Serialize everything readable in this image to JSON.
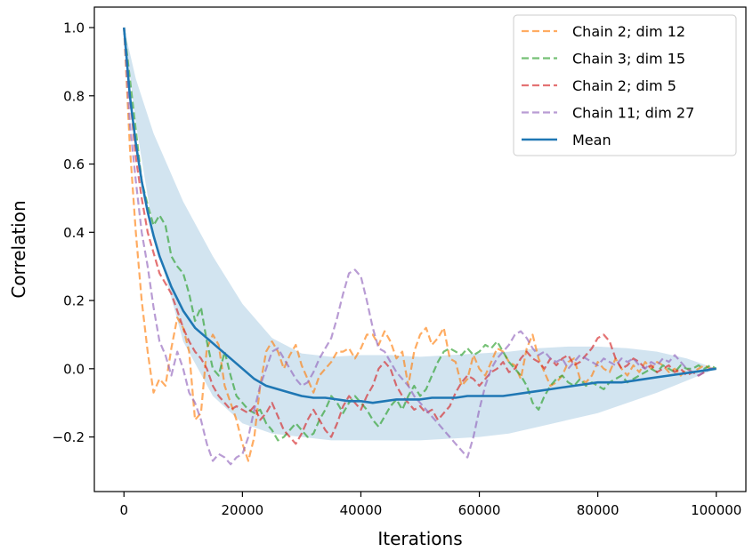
{
  "chart_data": {
    "type": "line",
    "title": "",
    "xlabel": "Iterations",
    "ylabel": "Correlation",
    "xlim": [
      -5000,
      105000
    ],
    "ylim": [
      -0.36,
      1.06
    ],
    "xticks": [
      0,
      20000,
      40000,
      60000,
      80000,
      100000
    ],
    "xtick_labels": [
      "0",
      "20000",
      "40000",
      "60000",
      "80000",
      "100000"
    ],
    "yticks": [
      -0.2,
      0.0,
      0.2,
      0.4,
      0.6,
      0.8,
      1.0
    ],
    "ytick_labels": [
      "−0.2",
      "0.0",
      "0.2",
      "0.4",
      "0.6",
      "0.8",
      "1.0"
    ],
    "grid": false,
    "legend_position": "top-right",
    "band": {
      "color": "#1f77b4",
      "x": [
        0,
        2000,
        5000,
        10000,
        15000,
        20000,
        25000,
        30000,
        35000,
        40000,
        45000,
        50000,
        55000,
        60000,
        65000,
        70000,
        75000,
        80000,
        85000,
        90000,
        95000,
        100000
      ],
      "upper": [
        1.0,
        0.85,
        0.69,
        0.49,
        0.33,
        0.19,
        0.09,
        0.045,
        0.035,
        0.04,
        0.04,
        0.035,
        0.04,
        0.045,
        0.05,
        0.06,
        0.065,
        0.065,
        0.06,
        0.05,
        0.03,
        0.0
      ],
      "lower": [
        1.0,
        0.72,
        0.4,
        0.08,
        -0.08,
        -0.16,
        -0.19,
        -0.2,
        -0.21,
        -0.21,
        -0.21,
        -0.21,
        -0.205,
        -0.2,
        -0.19,
        -0.17,
        -0.15,
        -0.13,
        -0.1,
        -0.07,
        -0.035,
        0.0
      ]
    },
    "series": [
      {
        "name": "Chain 2; dim 12",
        "color": "#ff7f0e",
        "style": "dashed",
        "x": [
          0,
          1000,
          2000,
          3000,
          4000,
          5000,
          6000,
          7000,
          8000,
          9000,
          10000,
          11000,
          12000,
          13000,
          14000,
          15000,
          16000,
          17000,
          18000,
          19000,
          20000,
          21000,
          22000,
          23000,
          24000,
          25000,
          26000,
          27000,
          28000,
          29000,
          30000,
          31000,
          32000,
          33000,
          34000,
          35000,
          36000,
          37000,
          38000,
          39000,
          40000,
          41000,
          42000,
          43000,
          44000,
          45000,
          46000,
          47000,
          48000,
          49000,
          50000,
          51000,
          52000,
          53000,
          54000,
          55000,
          56000,
          57000,
          58000,
          59000,
          60000,
          61000,
          62000,
          63000,
          64000,
          65000,
          66000,
          67000,
          68000,
          69000,
          70000,
          71000,
          72000,
          73000,
          74000,
          75000,
          76000,
          77000,
          78000,
          79000,
          80000,
          81000,
          82000,
          83000,
          84000,
          85000,
          86000,
          87000,
          88000,
          89000,
          90000,
          91000,
          92000,
          93000,
          94000,
          95000,
          96000,
          97000,
          98000,
          99000,
          100000
        ],
        "y": [
          1.0,
          0.65,
          0.4,
          0.2,
          0.05,
          -0.07,
          -0.03,
          -0.05,
          0.06,
          0.15,
          0.12,
          0.05,
          -0.15,
          -0.13,
          0.06,
          0.1,
          0.07,
          -0.05,
          -0.1,
          -0.15,
          -0.22,
          -0.27,
          -0.2,
          -0.05,
          0.05,
          0.08,
          0.05,
          0.0,
          0.04,
          0.07,
          0.01,
          -0.03,
          -0.07,
          -0.02,
          0.0,
          0.02,
          0.05,
          0.05,
          0.06,
          0.03,
          0.06,
          0.1,
          0.1,
          0.07,
          0.11,
          0.08,
          0.03,
          0.05,
          -0.05,
          0.05,
          0.1,
          0.12,
          0.07,
          0.09,
          0.12,
          0.03,
          0.02,
          -0.05,
          -0.03,
          0.04,
          0.0,
          -0.02,
          0.02,
          0.06,
          0.05,
          0.02,
          0.01,
          -0.03,
          0.06,
          0.1,
          0.03,
          -0.01,
          -0.05,
          -0.04,
          -0.02,
          0.02,
          0.03,
          -0.03,
          -0.04,
          -0.02,
          0.02,
          0.0,
          -0.01,
          0.03,
          0.0,
          -0.02,
          0.01,
          -0.01,
          0.02,
          0.0,
          0.02,
          0.01,
          -0.01,
          0.0,
          -0.02,
          0.0,
          -0.01,
          0.0,
          0.01,
          0.0,
          0.0
        ]
      },
      {
        "name": "Chain 3; dim 15",
        "color": "#2ca02c",
        "style": "dashed",
        "x": [
          0,
          1000,
          2000,
          3000,
          4000,
          5000,
          6000,
          7000,
          8000,
          9000,
          10000,
          11000,
          12000,
          13000,
          14000,
          15000,
          16000,
          17000,
          18000,
          19000,
          20000,
          21000,
          22000,
          23000,
          24000,
          25000,
          26000,
          27000,
          28000,
          29000,
          30000,
          31000,
          32000,
          33000,
          34000,
          35000,
          36000,
          37000,
          38000,
          39000,
          40000,
          41000,
          42000,
          43000,
          44000,
          45000,
          46000,
          47000,
          48000,
          49000,
          50000,
          51000,
          52000,
          53000,
          54000,
          55000,
          56000,
          57000,
          58000,
          59000,
          60000,
          61000,
          62000,
          63000,
          64000,
          65000,
          66000,
          67000,
          68000,
          69000,
          70000,
          71000,
          72000,
          73000,
          74000,
          75000,
          76000,
          77000,
          78000,
          79000,
          80000,
          81000,
          82000,
          83000,
          84000,
          85000,
          86000,
          87000,
          88000,
          89000,
          90000,
          91000,
          92000,
          93000,
          94000,
          95000,
          96000,
          97000,
          98000,
          99000,
          100000
        ],
        "y": [
          1.0,
          0.85,
          0.7,
          0.55,
          0.48,
          0.42,
          0.45,
          0.42,
          0.33,
          0.3,
          0.28,
          0.22,
          0.14,
          0.18,
          0.08,
          0.0,
          -0.02,
          0.05,
          -0.02,
          -0.08,
          -0.1,
          -0.12,
          -0.13,
          -0.12,
          -0.16,
          -0.18,
          -0.21,
          -0.2,
          -0.18,
          -0.16,
          -0.18,
          -0.2,
          -0.19,
          -0.15,
          -0.12,
          -0.08,
          -0.1,
          -0.13,
          -0.1,
          -0.08,
          -0.1,
          -0.12,
          -0.15,
          -0.17,
          -0.14,
          -0.11,
          -0.09,
          -0.12,
          -0.08,
          -0.05,
          -0.08,
          -0.06,
          -0.02,
          0.02,
          0.05,
          0.06,
          0.05,
          0.04,
          0.06,
          0.04,
          0.05,
          0.07,
          0.06,
          0.08,
          0.05,
          0.02,
          0.0,
          -0.02,
          -0.05,
          -0.1,
          -0.12,
          -0.08,
          -0.05,
          -0.03,
          -0.02,
          -0.04,
          -0.05,
          -0.03,
          -0.05,
          -0.04,
          -0.05,
          -0.06,
          -0.04,
          -0.03,
          -0.02,
          -0.04,
          -0.03,
          -0.02,
          -0.01,
          0.0,
          -0.01,
          0.01,
          0.0,
          -0.01,
          0.01,
          0.0,
          0.0,
          0.01,
          0.0,
          0.01,
          0.0
        ]
      },
      {
        "name": "Chain 2; dim 5",
        "color": "#d62728",
        "style": "dashed",
        "x": [
          0,
          1000,
          2000,
          3000,
          4000,
          5000,
          6000,
          7000,
          8000,
          9000,
          10000,
          11000,
          12000,
          13000,
          14000,
          15000,
          16000,
          17000,
          18000,
          19000,
          20000,
          21000,
          22000,
          23000,
          24000,
          25000,
          26000,
          27000,
          28000,
          29000,
          30000,
          31000,
          32000,
          33000,
          34000,
          35000,
          36000,
          37000,
          38000,
          39000,
          40000,
          41000,
          42000,
          43000,
          44000,
          45000,
          46000,
          47000,
          48000,
          49000,
          50000,
          51000,
          52000,
          53000,
          54000,
          55000,
          56000,
          57000,
          58000,
          59000,
          60000,
          61000,
          62000,
          63000,
          64000,
          65000,
          66000,
          67000,
          68000,
          69000,
          70000,
          71000,
          72000,
          73000,
          74000,
          75000,
          76000,
          77000,
          78000,
          79000,
          80000,
          81000,
          82000,
          83000,
          84000,
          85000,
          86000,
          87000,
          88000,
          89000,
          90000,
          91000,
          92000,
          93000,
          94000,
          95000,
          96000,
          97000,
          98000,
          99000,
          100000
        ],
        "y": [
          1.0,
          0.8,
          0.62,
          0.5,
          0.4,
          0.34,
          0.28,
          0.25,
          0.22,
          0.17,
          0.12,
          0.08,
          0.05,
          0.03,
          0.0,
          -0.05,
          -0.08,
          -0.1,
          -0.12,
          -0.11,
          -0.12,
          -0.13,
          -0.11,
          -0.15,
          -0.13,
          -0.1,
          -0.14,
          -0.18,
          -0.2,
          -0.22,
          -0.19,
          -0.15,
          -0.12,
          -0.15,
          -0.18,
          -0.2,
          -0.16,
          -0.11,
          -0.08,
          -0.1,
          -0.12,
          -0.08,
          -0.05,
          0.0,
          0.02,
          0.0,
          -0.05,
          -0.08,
          -0.1,
          -0.12,
          -0.11,
          -0.13,
          -0.12,
          -0.15,
          -0.13,
          -0.11,
          -0.07,
          -0.04,
          -0.02,
          -0.03,
          -0.05,
          -0.03,
          -0.01,
          0.0,
          0.02,
          -0.01,
          0.0,
          0.03,
          0.05,
          0.03,
          0.02,
          0.0,
          0.03,
          0.01,
          0.03,
          0.04,
          0.01,
          0.02,
          0.04,
          0.06,
          0.09,
          0.1,
          0.08,
          0.03,
          0.0,
          0.01,
          0.03,
          0.02,
          0.0,
          0.01,
          -0.01,
          0.0,
          0.01,
          -0.01,
          0.0,
          -0.02,
          -0.01,
          -0.02,
          -0.01,
          0.0,
          0.0
        ]
      },
      {
        "name": "Chain 11; dim 27",
        "color": "#9467bd",
        "style": "dashed",
        "x": [
          0,
          1000,
          2000,
          3000,
          4000,
          5000,
          6000,
          7000,
          8000,
          9000,
          10000,
          11000,
          12000,
          13000,
          14000,
          15000,
          16000,
          17000,
          18000,
          19000,
          20000,
          21000,
          22000,
          23000,
          24000,
          25000,
          26000,
          27000,
          28000,
          29000,
          30000,
          31000,
          32000,
          33000,
          34000,
          35000,
          36000,
          37000,
          38000,
          39000,
          40000,
          41000,
          42000,
          43000,
          44000,
          45000,
          46000,
          47000,
          48000,
          49000,
          50000,
          51000,
          52000,
          53000,
          54000,
          55000,
          56000,
          57000,
          58000,
          59000,
          60000,
          61000,
          62000,
          63000,
          64000,
          65000,
          66000,
          67000,
          68000,
          69000,
          70000,
          71000,
          72000,
          73000,
          74000,
          75000,
          76000,
          77000,
          78000,
          79000,
          80000,
          81000,
          82000,
          83000,
          84000,
          85000,
          86000,
          87000,
          88000,
          89000,
          90000,
          91000,
          92000,
          93000,
          94000,
          95000,
          96000,
          97000,
          98000,
          99000,
          100000
        ],
        "y": [
          1.0,
          0.72,
          0.55,
          0.4,
          0.3,
          0.18,
          0.08,
          0.04,
          -0.02,
          0.05,
          0.0,
          -0.07,
          -0.1,
          -0.15,
          -0.22,
          -0.27,
          -0.25,
          -0.26,
          -0.28,
          -0.26,
          -0.25,
          -0.2,
          -0.12,
          -0.05,
          0.0,
          0.05,
          0.06,
          0.03,
          0.0,
          -0.03,
          -0.05,
          -0.04,
          -0.01,
          0.03,
          0.06,
          0.09,
          0.15,
          0.22,
          0.28,
          0.29,
          0.27,
          0.2,
          0.12,
          0.06,
          0.05,
          0.02,
          -0.01,
          -0.03,
          -0.05,
          -0.08,
          -0.1,
          -0.12,
          -0.14,
          -0.16,
          -0.18,
          -0.2,
          -0.22,
          -0.24,
          -0.26,
          -0.2,
          -0.12,
          -0.05,
          0.0,
          0.03,
          0.05,
          0.07,
          0.1,
          0.11,
          0.09,
          0.06,
          0.04,
          0.05,
          0.03,
          0.02,
          0.03,
          0.0,
          0.02,
          0.04,
          0.03,
          0.02,
          0.01,
          0.03,
          0.02,
          0.01,
          0.03,
          0.02,
          0.03,
          0.01,
          0.0,
          0.02,
          0.01,
          0.03,
          0.02,
          0.04,
          0.02,
          0.0,
          -0.01,
          -0.02,
          -0.01,
          0.0,
          0.0
        ]
      },
      {
        "name": "Mean",
        "color": "#1f77b4",
        "style": "solid",
        "x": [
          0,
          1000,
          2000,
          3000,
          4000,
          5000,
          6000,
          8000,
          10000,
          12000,
          14000,
          16000,
          18000,
          20000,
          22000,
          24000,
          26000,
          28000,
          30000,
          32000,
          34000,
          36000,
          38000,
          40000,
          42000,
          44000,
          46000,
          48000,
          50000,
          52000,
          54000,
          56000,
          58000,
          60000,
          62000,
          64000,
          66000,
          68000,
          70000,
          72000,
          74000,
          76000,
          78000,
          80000,
          82000,
          84000,
          86000,
          88000,
          90000,
          92000,
          94000,
          96000,
          98000,
          100000
        ],
        "y": [
          1.0,
          0.8,
          0.66,
          0.55,
          0.46,
          0.39,
          0.33,
          0.24,
          0.17,
          0.12,
          0.09,
          0.06,
          0.03,
          0.0,
          -0.03,
          -0.05,
          -0.06,
          -0.07,
          -0.08,
          -0.085,
          -0.085,
          -0.09,
          -0.095,
          -0.095,
          -0.1,
          -0.095,
          -0.09,
          -0.09,
          -0.09,
          -0.085,
          -0.085,
          -0.085,
          -0.08,
          -0.08,
          -0.08,
          -0.08,
          -0.075,
          -0.07,
          -0.065,
          -0.06,
          -0.055,
          -0.05,
          -0.045,
          -0.04,
          -0.04,
          -0.04,
          -0.035,
          -0.03,
          -0.025,
          -0.02,
          -0.015,
          -0.01,
          -0.005,
          0.0
        ]
      }
    ]
  }
}
